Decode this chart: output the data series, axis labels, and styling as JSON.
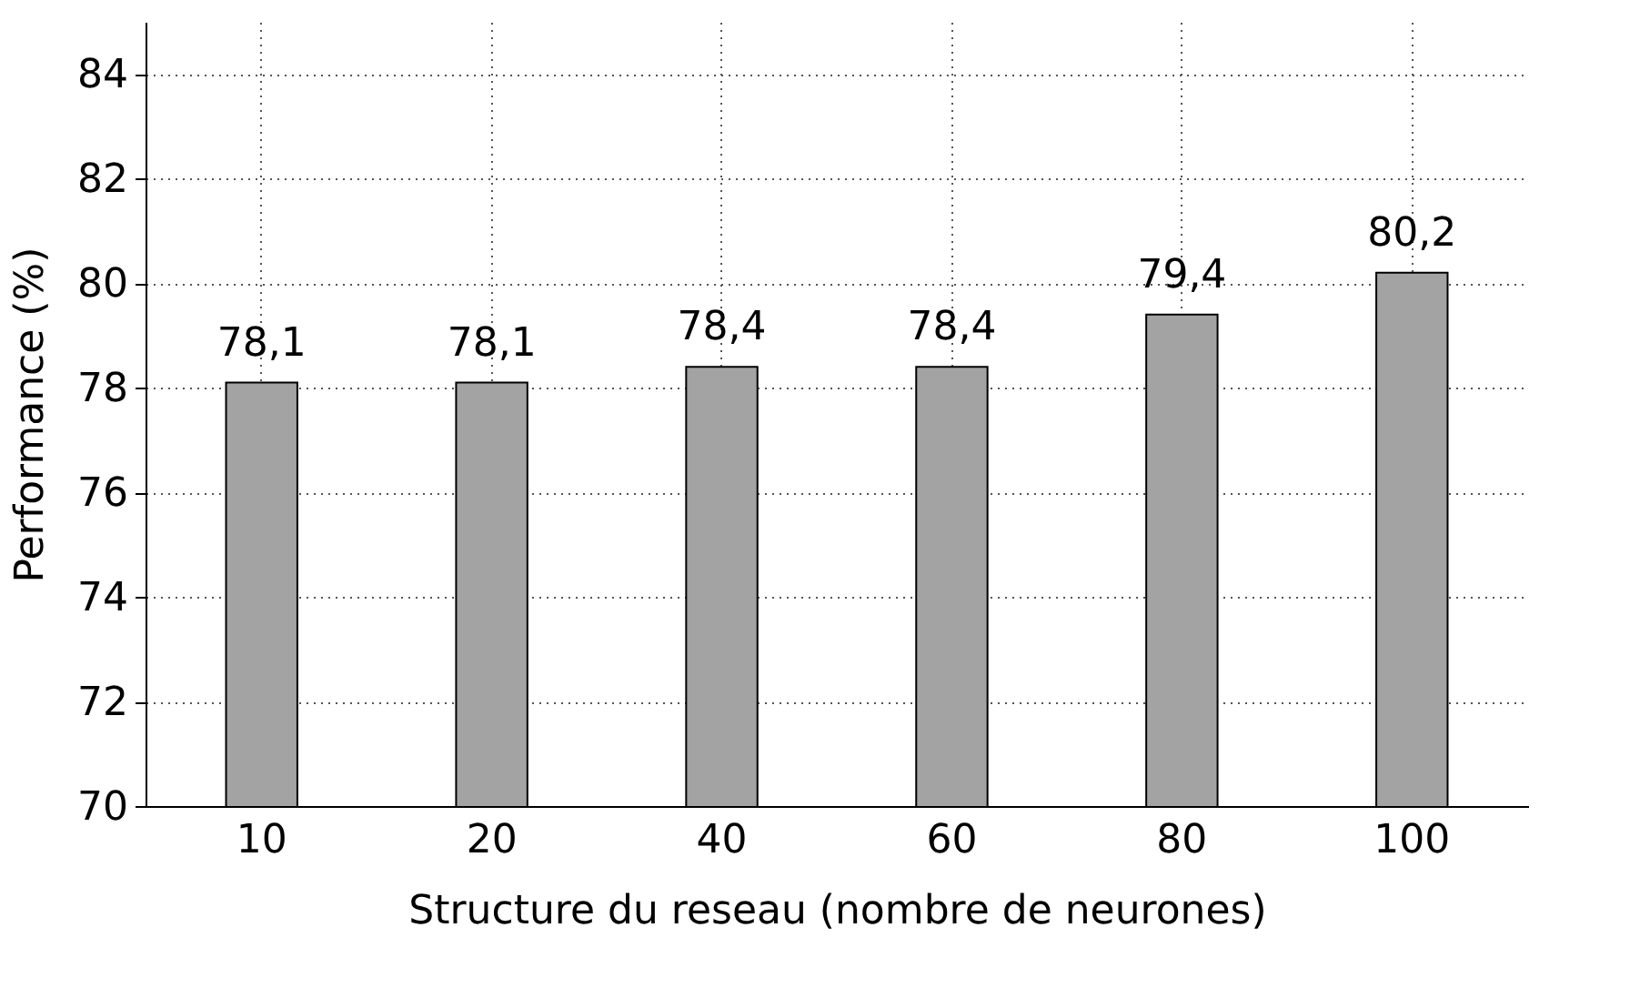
{
  "chart_data": {
    "type": "bar",
    "xlabel": "Structure du reseau (nombre de neurones)",
    "ylabel": "Performance (%)",
    "categories": [
      "10",
      "20",
      "40",
      "60",
      "80",
      "100"
    ],
    "values": [
      78.1,
      78.1,
      78.4,
      78.4,
      79.4,
      80.2
    ],
    "value_labels": [
      "78,1",
      "78,1",
      "78,4",
      "78,4",
      "79,4",
      "80,2"
    ],
    "color": "#a3a3a3",
    "ylim": [
      70,
      85
    ],
    "yticks": [
      70,
      72,
      74,
      76,
      78,
      80,
      82,
      84
    ],
    "grid": true
  }
}
